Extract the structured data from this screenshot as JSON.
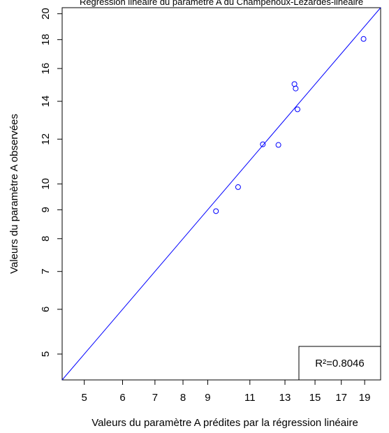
{
  "chart_data": {
    "type": "scatter",
    "title": "Régression linéaire du paramètre A du Champenoux-Lézardes-linéaire",
    "xlabel": "Valeurs du paramètre A prédites par la régression linéaire",
    "ylabel": "Valeurs du paramètre A observées",
    "xscale": "log",
    "yscale": "log",
    "xlim": [
      4.5,
      20.5
    ],
    "ylim": [
      4.5,
      20.5
    ],
    "xticks": [
      5,
      6,
      7,
      8,
      9,
      11,
      13,
      15,
      17,
      19
    ],
    "yticks": [
      5,
      6,
      7,
      8,
      9,
      10,
      12,
      14,
      16,
      18,
      20
    ],
    "points": [
      {
        "x": 9.36,
        "y": 8.95
      },
      {
        "x": 10.4,
        "y": 9.87
      },
      {
        "x": 11.7,
        "y": 11.75
      },
      {
        "x": 12.6,
        "y": 11.72
      },
      {
        "x": 13.6,
        "y": 15.02
      },
      {
        "x": 13.68,
        "y": 14.75
      },
      {
        "x": 13.8,
        "y": 13.55
      },
      {
        "x": 18.9,
        "y": 18.05
      }
    ],
    "reference_line": "y = x",
    "annotation": "R²=0.8046",
    "legend_position": "bottom-right",
    "grid": false,
    "color": "#0000ff"
  }
}
